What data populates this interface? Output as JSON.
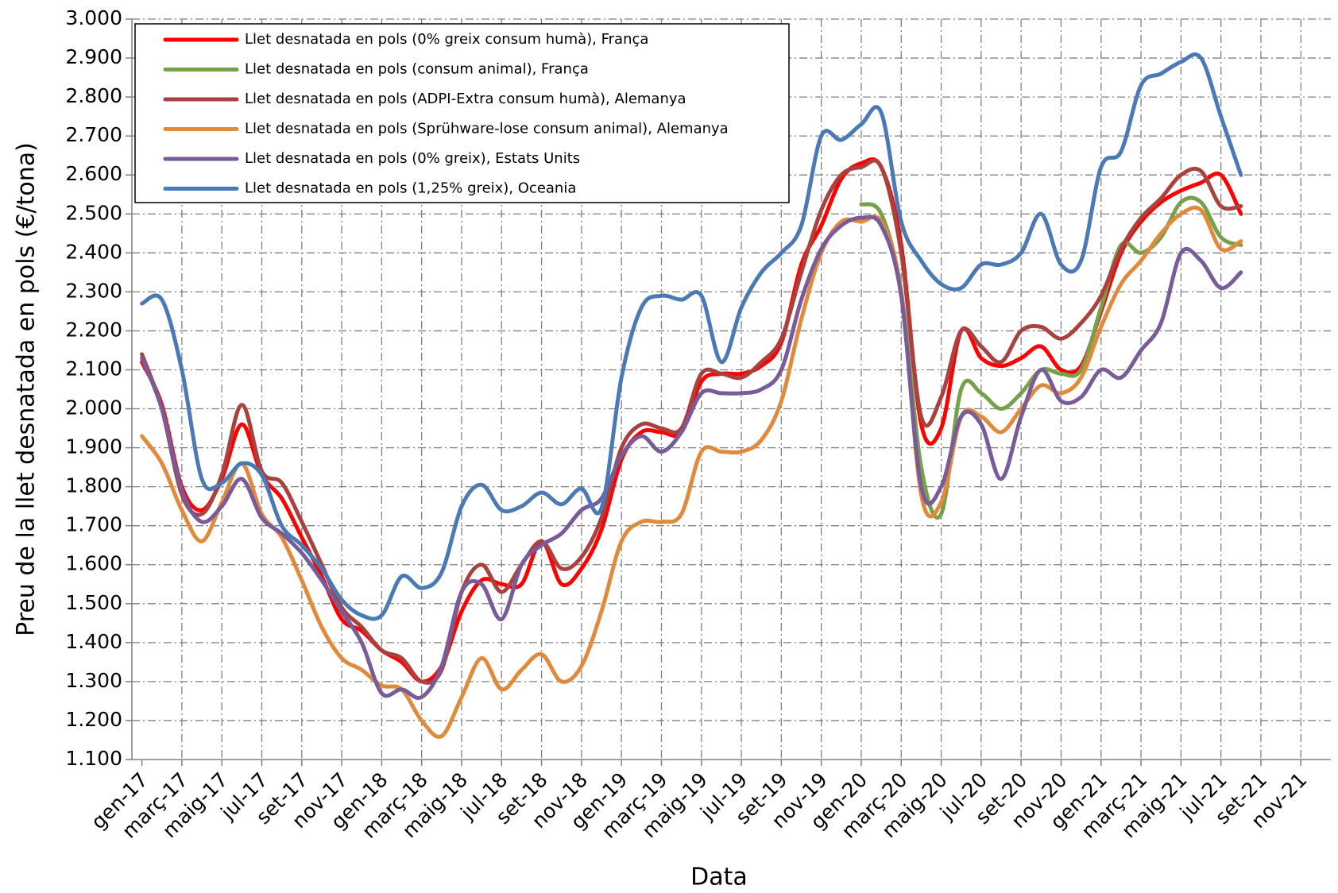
{
  "chart_data": {
    "type": "line",
    "x_label": "Data",
    "y_label": "Preu de la llet desnatada en pols (€/tona)",
    "categories": [
      "gen-17",
      null,
      "març-17",
      null,
      "maig-17",
      null,
      "jul-17",
      null,
      "set-17",
      null,
      "nov-17",
      null,
      "gen-18",
      null,
      "març-18",
      null,
      "maig-18",
      null,
      "jul-18",
      null,
      "set-18",
      null,
      "nov-18",
      null,
      "gen-19",
      null,
      "març-19",
      null,
      "maig-19",
      null,
      "jul-19",
      null,
      "set-19",
      null,
      "nov-19",
      null,
      "gen-20",
      null,
      "març-20",
      null,
      "maig-20",
      null,
      "jul-20",
      null,
      "set-20",
      null,
      "nov-20",
      null,
      "gen-21",
      null,
      "març-21",
      null,
      "maig-21",
      null,
      "jul-21",
      null,
      "set-21",
      null,
      "nov-21",
      null
    ],
    "ylim": [
      1100,
      3000
    ],
    "yticks": [
      {
        "value": 1100,
        "label": "1.100"
      },
      {
        "value": 1200,
        "label": "1.200"
      },
      {
        "value": 1300,
        "label": "1.300"
      },
      {
        "value": 1400,
        "label": "1.400"
      },
      {
        "value": 1500,
        "label": "1.500"
      },
      {
        "value": 1600,
        "label": "1.600"
      },
      {
        "value": 1700,
        "label": "1.700"
      },
      {
        "value": 1800,
        "label": "1.800"
      },
      {
        "value": 1900,
        "label": "1.900"
      },
      {
        "value": 2000,
        "label": "2.000"
      },
      {
        "value": 2100,
        "label": "2.100"
      },
      {
        "value": 2200,
        "label": "2.200"
      },
      {
        "value": 2300,
        "label": "2.300"
      },
      {
        "value": 2400,
        "label": "2.400"
      },
      {
        "value": 2500,
        "label": "2.500"
      },
      {
        "value": 2600,
        "label": "2.600"
      },
      {
        "value": 2700,
        "label": "2.700"
      },
      {
        "value": 2800,
        "label": "2.800"
      },
      {
        "value": 2900,
        "label": "2.900"
      },
      {
        "value": 3000,
        "label": "3.000"
      }
    ],
    "grid": true,
    "legend": "upper left",
    "series": [
      {
        "name": "Llet desnatada en pols (0% greix consum humà), França",
        "color": "#ff0000",
        "values": [
          2120,
          2010,
          1800,
          1740,
          1820,
          1960,
          1830,
          1770,
          1670,
          1570,
          1460,
          1430,
          1380,
          1350,
          1300,
          1340,
          1480,
          1560,
          1550,
          1550,
          1660,
          1550,
          1590,
          1690,
          1870,
          1940,
          1940,
          1940,
          2070,
          2090,
          2090,
          2110,
          2170,
          2370,
          2470,
          2590,
          2630,
          2620,
          2420,
          1960,
          1950,
          2200,
          2130,
          2110,
          2130,
          2160,
          2100,
          2110,
          2250,
          2400,
          2480,
          2530,
          2560,
          2580,
          2600,
          2500,
          null,
          null,
          null,
          null
        ]
      },
      {
        "name": "Llet desnatada en pols (consum animal), França",
        "color": "#77a04a",
        "values": [
          null,
          null,
          null,
          null,
          null,
          null,
          null,
          null,
          null,
          null,
          null,
          null,
          null,
          null,
          null,
          null,
          null,
          null,
          null,
          null,
          null,
          null,
          null,
          null,
          null,
          null,
          null,
          null,
          null,
          null,
          null,
          null,
          null,
          null,
          null,
          null,
          2525,
          2500,
          2300,
          1850,
          1730,
          2050,
          2040,
          2000,
          2040,
          2100,
          2090,
          2100,
          2260,
          2420,
          2400,
          2440,
          2530,
          2530,
          2440,
          2420,
          null,
          null,
          null,
          null
        ]
      },
      {
        "name": "Llet desnatada en pols (ADPI-Extra consum humà), Alemanya",
        "color": "#a9423f",
        "values": [
          2140,
          2000,
          1780,
          1730,
          1830,
          2010,
          1840,
          1810,
          1710,
          1600,
          1490,
          1440,
          1380,
          1360,
          1300,
          1330,
          1530,
          1600,
          1530,
          1600,
          1660,
          1590,
          1620,
          1720,
          1900,
          1960,
          1950,
          1950,
          2090,
          2090,
          2080,
          2120,
          2180,
          2350,
          2510,
          2600,
          2620,
          2620,
          2400,
          1980,
          2030,
          2200,
          2160,
          2120,
          2200,
          2210,
          2180,
          2220,
          2290,
          2410,
          2490,
          2540,
          2600,
          2610,
          2520,
          2520,
          null,
          null,
          null,
          null
        ]
      },
      {
        "name": "Llet desnatada en pols (Sprühware-lose consum animal), Alemanya",
        "color": "#e08a3c",
        "values": [
          1930,
          1860,
          1740,
          1660,
          1760,
          1860,
          1730,
          1670,
          1560,
          1440,
          1360,
          1330,
          1290,
          1280,
          1200,
          1160,
          1260,
          1360,
          1280,
          1330,
          1370,
          1300,
          1340,
          1480,
          1660,
          1710,
          1710,
          1730,
          1890,
          1890,
          1890,
          1920,
          2020,
          2230,
          2400,
          2480,
          2480,
          2480,
          2300,
          1780,
          1760,
          1980,
          1980,
          1940,
          2000,
          2060,
          2040,
          2080,
          2210,
          2320,
          2380,
          2450,
          2500,
          2510,
          2410,
          2430,
          null,
          null,
          null,
          null
        ]
      },
      {
        "name": "Llet desnatada en pols (0% greix), Estats Units",
        "color": "#7a5b9a",
        "values": [
          2130,
          2000,
          1790,
          1710,
          1750,
          1820,
          1720,
          1680,
          1630,
          1560,
          1480,
          1400,
          1270,
          1280,
          1260,
          1340,
          1530,
          1550,
          1460,
          1600,
          1650,
          1680,
          1740,
          1770,
          1880,
          1930,
          1890,
          1940,
          2040,
          2040,
          2040,
          2050,
          2100,
          2280,
          2410,
          2470,
          2490,
          2470,
          2290,
          1800,
          1800,
          1980,
          1960,
          1820,
          1980,
          2100,
          2020,
          2030,
          2100,
          2080,
          2150,
          2220,
          2400,
          2380,
          2310,
          2350,
          null,
          null,
          null,
          null
        ]
      },
      {
        "name": "Llet desnatada en pols (1,25% greix), Oceania",
        "color": "#4a7ab5",
        "values": [
          2270,
          2280,
          2100,
          1820,
          1810,
          1860,
          1830,
          1700,
          1650,
          1590,
          1510,
          1470,
          1470,
          1570,
          1540,
          1580,
          1750,
          1805,
          1740,
          1750,
          1785,
          1755,
          1795,
          1745,
          2080,
          2260,
          2290,
          2280,
          2290,
          2120,
          2260,
          2350,
          2400,
          2470,
          2700,
          2690,
          2730,
          2760,
          2480,
          2380,
          2320,
          2310,
          2370,
          2370,
          2400,
          2500,
          2370,
          2380,
          2620,
          2660,
          2830,
          2860,
          2890,
          2900,
          2750,
          2600,
          null,
          null,
          null,
          null
        ]
      }
    ]
  }
}
